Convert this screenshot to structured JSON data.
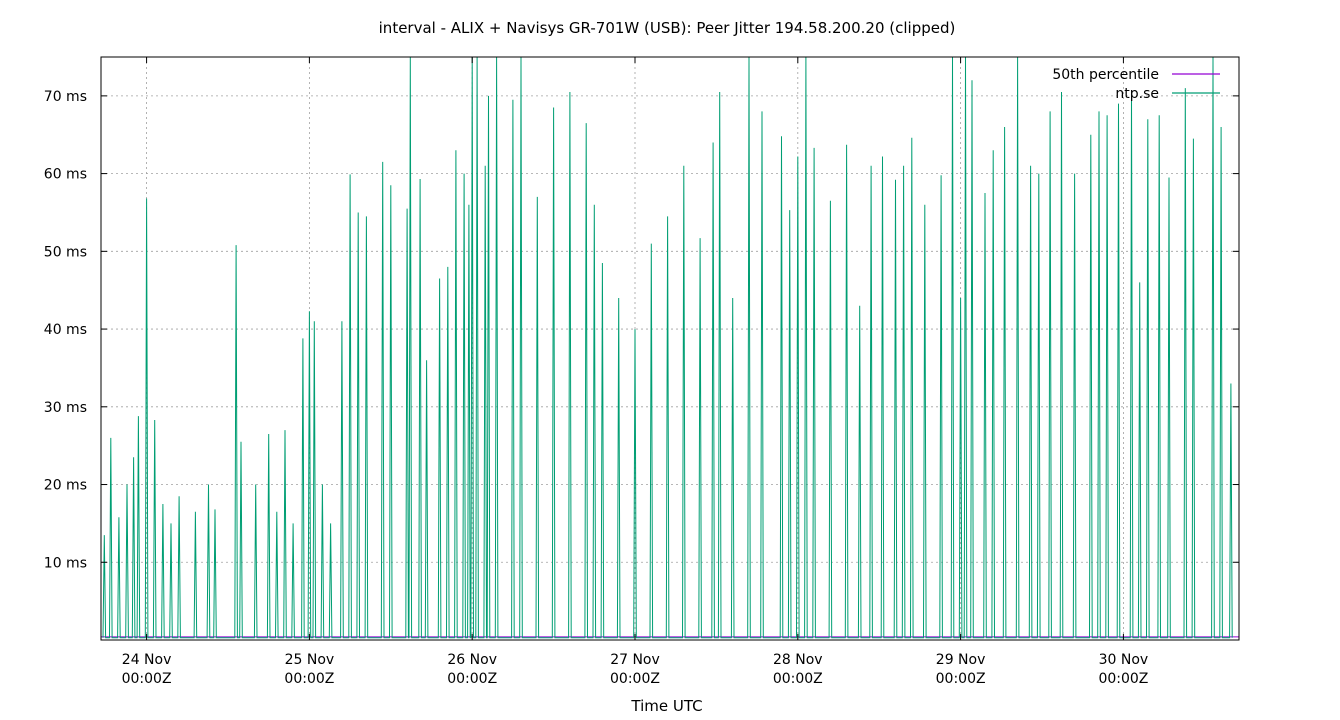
{
  "chart_data": {
    "type": "line",
    "title": "interval - ALIX + Navisys GR-701W (USB): Peer Jitter 194.58.200.20 (clipped)",
    "xlabel": "Time UTC",
    "ylabel": "",
    "x_unit": "days since 24 Nov 00:00Z",
    "xlim": [
      -0.28,
      6.71
    ],
    "ylim": [
      0,
      75
    ],
    "y_ticks": [
      10,
      20,
      30,
      40,
      50,
      60,
      70
    ],
    "y_tick_labels": [
      "10 ms",
      "20 ms",
      "30 ms",
      "40 ms",
      "50 ms",
      "60 ms",
      "70 ms"
    ],
    "x_ticks": [
      0,
      1,
      2,
      3,
      4,
      5,
      6
    ],
    "x_tick_labels": [
      [
        "24 Nov",
        "00:00Z"
      ],
      [
        "25 Nov",
        "00:00Z"
      ],
      [
        "26 Nov",
        "00:00Z"
      ],
      [
        "27 Nov",
        "00:00Z"
      ],
      [
        "28 Nov",
        "00:00Z"
      ],
      [
        "29 Nov",
        "00:00Z"
      ],
      [
        "30 Nov",
        "00:00Z"
      ]
    ],
    "grid": true,
    "legend_position": "top-right",
    "series": [
      {
        "name": "50th percentile",
        "color": "#9400d3",
        "style": "flat",
        "value": 0.4
      },
      {
        "name": "ntp.se",
        "color": "#009e73",
        "style": "spiky",
        "baseline": 0.3,
        "peaks": [
          [
            -0.26,
            13.5
          ],
          [
            -0.22,
            26
          ],
          [
            -0.17,
            15.8
          ],
          [
            -0.12,
            20
          ],
          [
            -0.08,
            23.5
          ],
          [
            -0.05,
            28.8
          ],
          [
            0.0,
            56.8
          ],
          [
            0.05,
            28.3
          ],
          [
            0.1,
            17.5
          ],
          [
            0.15,
            15
          ],
          [
            0.2,
            18.5
          ],
          [
            0.3,
            16.5
          ],
          [
            0.38,
            20
          ],
          [
            0.42,
            16.8
          ],
          [
            0.55,
            50.8
          ],
          [
            0.58,
            25.5
          ],
          [
            0.67,
            20
          ],
          [
            0.75,
            26.5
          ],
          [
            0.8,
            16.5
          ],
          [
            0.85,
            27
          ],
          [
            0.9,
            15
          ],
          [
            0.96,
            38.8
          ],
          [
            1.0,
            42.3
          ],
          [
            1.03,
            41
          ],
          [
            1.08,
            20
          ],
          [
            1.13,
            15
          ],
          [
            1.2,
            41
          ],
          [
            1.25,
            59.9
          ],
          [
            1.3,
            55
          ],
          [
            1.35,
            54.5
          ],
          [
            1.45,
            61.5
          ],
          [
            1.5,
            58.5
          ],
          [
            1.6,
            55.5
          ],
          [
            1.62,
            75
          ],
          [
            1.68,
            59.3
          ],
          [
            1.72,
            36
          ],
          [
            1.8,
            46.5
          ],
          [
            1.85,
            48
          ],
          [
            1.9,
            63
          ],
          [
            1.95,
            60
          ],
          [
            1.98,
            56
          ],
          [
            2.0,
            75
          ],
          [
            2.03,
            75
          ],
          [
            2.08,
            61
          ],
          [
            2.1,
            70
          ],
          [
            2.15,
            75
          ],
          [
            2.25,
            69.5
          ],
          [
            2.3,
            75
          ],
          [
            2.4,
            57
          ],
          [
            2.5,
            68.5
          ],
          [
            2.6,
            70.5
          ],
          [
            2.7,
            66.5
          ],
          [
            2.75,
            56
          ],
          [
            2.8,
            48.5
          ],
          [
            2.9,
            44
          ],
          [
            3.0,
            40
          ],
          [
            3.1,
            51
          ],
          [
            3.2,
            54.5
          ],
          [
            3.3,
            61
          ],
          [
            3.4,
            51.7
          ],
          [
            3.48,
            64
          ],
          [
            3.52,
            70.5
          ],
          [
            3.6,
            44
          ],
          [
            3.7,
            75
          ],
          [
            3.78,
            68
          ],
          [
            3.9,
            64.8
          ],
          [
            3.95,
            55.3
          ],
          [
            4.0,
            62.2
          ],
          [
            4.05,
            75
          ],
          [
            4.1,
            63.3
          ],
          [
            4.2,
            56.5
          ],
          [
            4.3,
            63.7
          ],
          [
            4.38,
            43
          ],
          [
            4.45,
            61
          ],
          [
            4.52,
            62.2
          ],
          [
            4.6,
            59.2
          ],
          [
            4.65,
            61
          ],
          [
            4.7,
            64.6
          ],
          [
            4.78,
            56
          ],
          [
            4.88,
            59.8
          ],
          [
            4.95,
            75
          ],
          [
            5.0,
            44
          ],
          [
            5.03,
            75
          ],
          [
            5.07,
            72
          ],
          [
            5.15,
            57.5
          ],
          [
            5.2,
            63
          ],
          [
            5.27,
            66
          ],
          [
            5.35,
            75
          ],
          [
            5.43,
            61
          ],
          [
            5.48,
            60
          ],
          [
            5.55,
            68
          ],
          [
            5.62,
            70.5
          ],
          [
            5.7,
            60
          ],
          [
            5.8,
            65
          ],
          [
            5.85,
            68
          ],
          [
            5.9,
            67.5
          ],
          [
            5.97,
            69
          ],
          [
            6.05,
            70.5
          ],
          [
            6.1,
            46
          ],
          [
            6.15,
            67
          ],
          [
            6.22,
            67.5
          ],
          [
            6.28,
            59.5
          ],
          [
            6.38,
            71
          ],
          [
            6.43,
            64.5
          ],
          [
            6.55,
            75
          ],
          [
            6.6,
            66
          ],
          [
            6.66,
            33
          ]
        ]
      }
    ]
  }
}
